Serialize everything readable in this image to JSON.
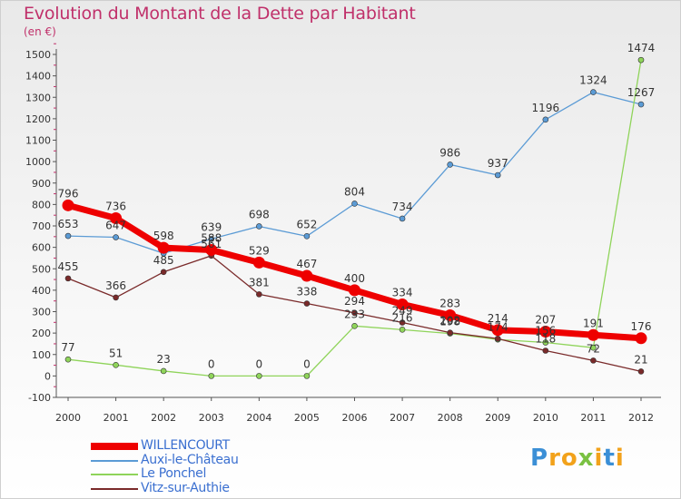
{
  "title": "Evolution du Montant de la Dette par Habitant",
  "unit_label": "(en €)",
  "logo": {
    "letters": [
      {
        "ch": "P",
        "color": "#3b8fd6"
      },
      {
        "ch": "r",
        "color": "#f2a21b"
      },
      {
        "ch": "o",
        "color": "#f2a21b"
      },
      {
        "ch": "x",
        "color": "#7ac142"
      },
      {
        "ch": "i",
        "color": "#f2a21b"
      },
      {
        "ch": "t",
        "color": "#3b8fd6"
      },
      {
        "ch": "i",
        "color": "#f2a21b"
      }
    ]
  },
  "chart_data": {
    "type": "line",
    "title": "Evolution du Montant de la Dette par Habitant",
    "ylabel": "(en €)",
    "xlabel": "",
    "x": [
      "2000",
      "2001",
      "2002",
      "2003",
      "2004",
      "2005",
      "2006",
      "2007",
      "2008",
      "2009",
      "2010",
      "2011",
      "2012"
    ],
    "ylim": [
      -100,
      1500
    ],
    "yticks": [
      -100,
      0,
      100,
      200,
      300,
      400,
      500,
      600,
      700,
      800,
      900,
      1000,
      1100,
      1200,
      1300,
      1400,
      1500
    ],
    "grid": false,
    "legend_position": "bottom-left",
    "series": [
      {
        "name": "WILLENCOURT",
        "color": "#ee0000",
        "values": [
          796,
          736,
          598,
          588,
          529,
          467,
          400,
          334,
          283,
          214,
          207,
          191,
          176
        ]
      },
      {
        "name": "Auxi-le-Château",
        "color": "#5b9bd5",
        "values": [
          653,
          647,
          572,
          639,
          698,
          652,
          804,
          734,
          986,
          937,
          1196,
          1324,
          1267
        ]
      },
      {
        "name": "Le Ponchel",
        "color": "#8fd45a",
        "values": [
          77,
          51,
          23,
          0,
          0,
          0,
          233,
          216,
          198,
          170,
          156,
          132,
          1474
        ]
      },
      {
        "name": "Vitz-sur-Authie",
        "color": "#7a2a2a",
        "values": [
          455,
          366,
          485,
          561,
          381,
          338,
          294,
          249,
          202,
          174,
          118,
          72,
          21
        ]
      }
    ],
    "data_labels": [
      [
        "796",
        "736",
        "598",
        "588",
        "529",
        "467",
        "400",
        "334",
        "283",
        "214",
        "207",
        "191",
        "176"
      ],
      [
        "653",
        "647",
        "",
        "639",
        "698",
        "652",
        "804",
        "734",
        "986",
        "937",
        "1196",
        "1324",
        "1267"
      ],
      [
        "77",
        "51",
        "23",
        "0",
        "0",
        "0",
        "233",
        "216",
        "198",
        "",
        "156",
        "",
        "1474"
      ],
      [
        "455",
        "366",
        "485",
        "561",
        "381",
        "338",
        "294",
        "249",
        "202",
        "174",
        "118",
        "72",
        "21"
      ]
    ]
  }
}
